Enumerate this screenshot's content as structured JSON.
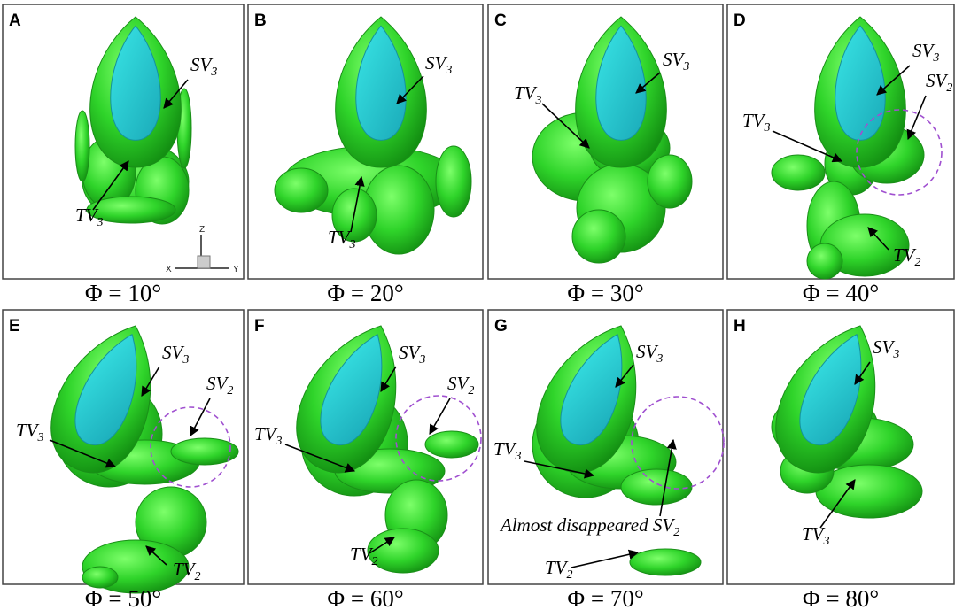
{
  "panels": [
    {
      "letter": "A",
      "caption": "Φ = 10°",
      "labels": [
        {
          "base": "SV",
          "sub": "3"
        },
        {
          "base": "TV",
          "sub": "3"
        }
      ],
      "axes": [
        "Z",
        "X",
        "Y"
      ]
    },
    {
      "letter": "B",
      "caption": "Φ = 20°",
      "labels": [
        {
          "base": "SV",
          "sub": "3"
        },
        {
          "base": "TV",
          "sub": "3"
        }
      ]
    },
    {
      "letter": "C",
      "caption": "Φ = 30°",
      "labels": [
        {
          "base": "SV",
          "sub": "3"
        },
        {
          "base": "TV",
          "sub": "3"
        }
      ]
    },
    {
      "letter": "D",
      "caption": "Φ = 40°",
      "labels": [
        {
          "base": "SV",
          "sub": "3"
        },
        {
          "base": "SV",
          "sub": "2"
        },
        {
          "base": "TV",
          "sub": "3"
        },
        {
          "base": "TV",
          "sub": "2"
        }
      ]
    },
    {
      "letter": "E",
      "caption": "Φ = 50°",
      "labels": [
        {
          "base": "SV",
          "sub": "3"
        },
        {
          "base": "SV",
          "sub": "2"
        },
        {
          "base": "TV",
          "sub": "3"
        },
        {
          "base": "TV",
          "sub": "2"
        }
      ]
    },
    {
      "letter": "F",
      "caption": "Φ = 60°",
      "labels": [
        {
          "base": "SV",
          "sub": "3"
        },
        {
          "base": "SV",
          "sub": "2"
        },
        {
          "base": "TV",
          "sub": "3"
        },
        {
          "base": "TV",
          "sub": "2"
        }
      ]
    },
    {
      "letter": "G",
      "caption": "Φ = 70°",
      "labels": [
        {
          "base": "SV",
          "sub": "3"
        },
        {
          "base": "TV",
          "sub": "3"
        },
        {
          "base": "Almost disappeared SV",
          "sub": "2"
        },
        {
          "base": "TV",
          "sub": "2"
        }
      ]
    },
    {
      "letter": "H",
      "caption": "Φ = 80°",
      "labels": [
        {
          "base": "SV",
          "sub": "3"
        },
        {
          "base": "TV",
          "sub": "3"
        }
      ]
    }
  ]
}
